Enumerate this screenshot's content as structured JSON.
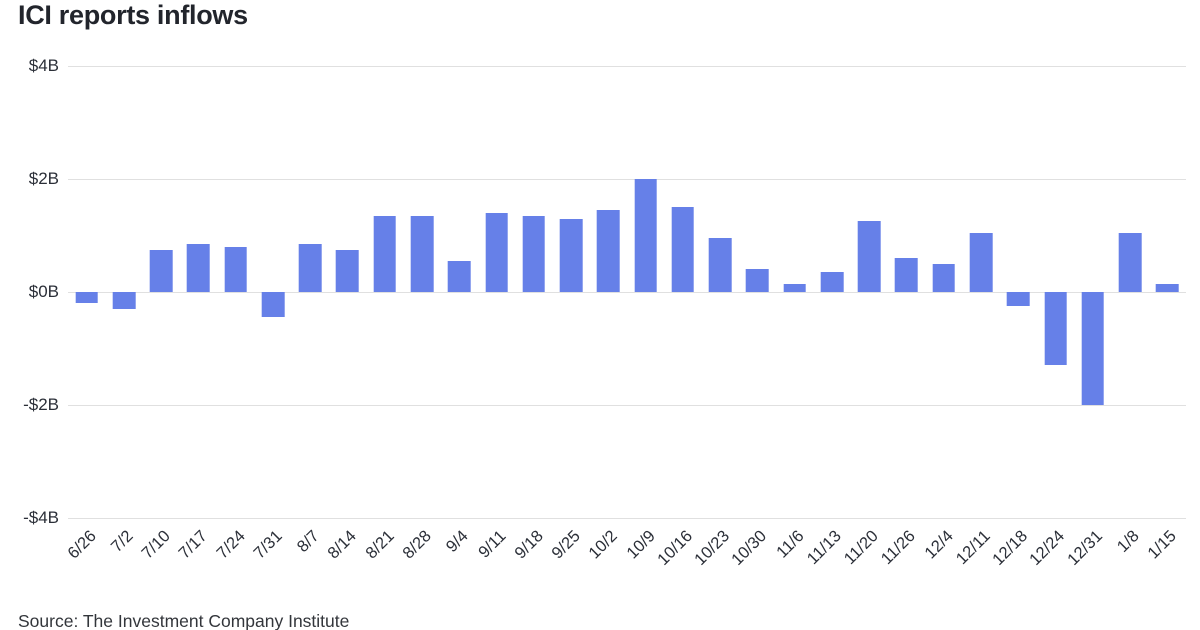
{
  "title": "ICI reports inflows",
  "source": "Source: The Investment Company Institute",
  "chart_data": {
    "type": "bar",
    "title": "ICI reports inflows",
    "xlabel": "",
    "ylabel": "",
    "categories": [
      "6/26",
      "7/2",
      "7/10",
      "7/17",
      "7/24",
      "7/31",
      "8/7",
      "8/14",
      "8/21",
      "8/28",
      "9/4",
      "9/11",
      "9/18",
      "9/25",
      "10/2",
      "10/9",
      "10/16",
      "10/23",
      "10/30",
      "11/6",
      "11/13",
      "11/20",
      "11/26",
      "12/4",
      "12/11",
      "12/18",
      "12/24",
      "12/31",
      "1/8",
      "1/15"
    ],
    "values": [
      -0.2,
      -0.3,
      0.75,
      0.85,
      0.8,
      -0.45,
      0.85,
      0.75,
      1.35,
      1.35,
      0.55,
      1.4,
      1.35,
      1.3,
      1.45,
      2.0,
      1.5,
      0.95,
      0.4,
      0.15,
      0.35,
      1.25,
      0.6,
      0.5,
      1.05,
      -0.25,
      -1.3,
      -2.0,
      1.05,
      0.15
    ],
    "ylim": [
      -4,
      4
    ],
    "yticks": [
      {
        "value": 4,
        "label": "$4B"
      },
      {
        "value": 2,
        "label": "$2B"
      },
      {
        "value": 0,
        "label": "$0B"
      },
      {
        "value": -2,
        "label": "-$2B"
      },
      {
        "value": -4,
        "label": "-$4B"
      }
    ],
    "bar_color": "#6680e8",
    "grid": true,
    "legend": false,
    "legend_position": "none"
  }
}
